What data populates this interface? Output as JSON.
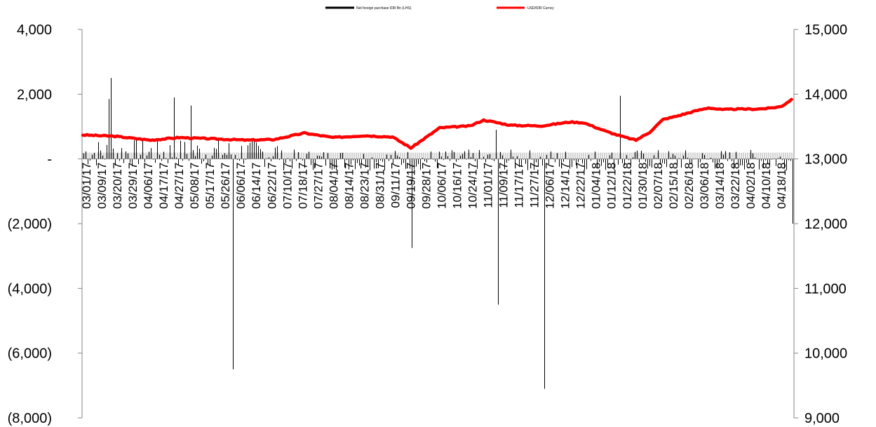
{
  "chart_data": {
    "type": "bar-line-dual-axis",
    "series": [
      {
        "name": "Net foreign purchase IDR Bn (LHS)",
        "type": "bar",
        "axis": "left",
        "color": "#000000"
      },
      {
        "name": "USD/IDR Curncy",
        "type": "line",
        "axis": "right",
        "color": "#ff0000"
      }
    ],
    "left_axis": {
      "min": -8000,
      "max": 4000,
      "ticks": [
        4000,
        2000,
        0,
        -2000,
        -4000,
        -6000,
        -8000
      ],
      "tick_labels": [
        "4,000",
        "2,000",
        "-",
        "(2,000)",
        "(4,000)",
        "(6,000)",
        "(8,000)"
      ]
    },
    "right_axis": {
      "min": 9000,
      "max": 15000,
      "ticks": [
        15000,
        14000,
        13000,
        12000,
        11000,
        10000,
        9000
      ],
      "tick_labels": [
        "15,000",
        "14,000",
        "13,000",
        "12,000",
        "11,000",
        "10,000",
        "9,000"
      ]
    },
    "x_tick_labels": [
      "03/01/17",
      "03/09/17",
      "03/20/17",
      "03/29/17",
      "04/06/17",
      "04/17/17",
      "04/27/17",
      "05/08/17",
      "05/17/17",
      "05/26/17",
      "06/06/17",
      "06/14/17",
      "06/22/17",
      "07/10/17",
      "07/18/17",
      "07/27/17",
      "08/04/17",
      "08/14/17",
      "08/23/17",
      "08/31/17",
      "09/11/17",
      "09/19/17",
      "09/28/17",
      "10/06/17",
      "10/16/17",
      "10/24/17",
      "11/01/17",
      "11/09/17",
      "11/17/17",
      "11/27/17",
      "12/06/17",
      "12/14/17",
      "12/22/17",
      "01/04/18",
      "01/12/18",
      "01/22/18",
      "01/30/18",
      "02/07/18",
      "02/15/18",
      "02/26/18",
      "03/06/18",
      "03/14/18",
      "03/22/18",
      "04/02/18",
      "04/10/18",
      "04/18/18"
    ],
    "notable_bars": [
      {
        "date": "03/17/17",
        "value": 2500
      },
      {
        "date": "03/16/17",
        "value": 1850
      },
      {
        "date": "04/24/17",
        "value": 1900
      },
      {
        "date": "05/04/17",
        "value": 1650
      },
      {
        "date": "05/29/17",
        "value": -6500
      },
      {
        "date": "09/11/17",
        "value": -2750
      },
      {
        "date": "10/31/17",
        "value": 900
      },
      {
        "date": "11/02/17",
        "value": -4500
      },
      {
        "date": "11/29/17",
        "value": -7100
      },
      {
        "date": "01/12/18",
        "value": 1950
      },
      {
        "date": "04/24/18",
        "value": -2000
      }
    ],
    "usd_idr_keypoints": [
      {
        "date": "03/01/17",
        "value": 13370
      },
      {
        "date": "03/20/17",
        "value": 13350
      },
      {
        "date": "04/10/17",
        "value": 13290
      },
      {
        "date": "04/27/17",
        "value": 13330
      },
      {
        "date": "05/17/17",
        "value": 13310
      },
      {
        "date": "06/06/17",
        "value": 13290
      },
      {
        "date": "06/22/17",
        "value": 13300
      },
      {
        "date": "07/10/17",
        "value": 13400
      },
      {
        "date": "07/27/17",
        "value": 13330
      },
      {
        "date": "08/14/17",
        "value": 13360
      },
      {
        "date": "08/31/17",
        "value": 13340
      },
      {
        "date": "09/11/17",
        "value": 13170
      },
      {
        "date": "09/28/17",
        "value": 13480
      },
      {
        "date": "10/16/17",
        "value": 13510
      },
      {
        "date": "10/24/17",
        "value": 13600
      },
      {
        "date": "11/09/17",
        "value": 13520
      },
      {
        "date": "11/27/17",
        "value": 13510
      },
      {
        "date": "12/14/17",
        "value": 13570
      },
      {
        "date": "12/22/17",
        "value": 13560
      },
      {
        "date": "01/04/18",
        "value": 13430
      },
      {
        "date": "01/12/18",
        "value": 13360
      },
      {
        "date": "01/22/18",
        "value": 13290
      },
      {
        "date": "01/30/18",
        "value": 13410
      },
      {
        "date": "02/07/18",
        "value": 13610
      },
      {
        "date": "02/15/18",
        "value": 13660
      },
      {
        "date": "02/26/18",
        "value": 13740
      },
      {
        "date": "03/06/18",
        "value": 13790
      },
      {
        "date": "03/14/18",
        "value": 13760
      },
      {
        "date": "03/22/18",
        "value": 13770
      },
      {
        "date": "04/02/18",
        "value": 13770
      },
      {
        "date": "04/10/18",
        "value": 13780
      },
      {
        "date": "04/18/18",
        "value": 13810
      },
      {
        "date": "04/24/18",
        "value": 13920
      }
    ]
  }
}
